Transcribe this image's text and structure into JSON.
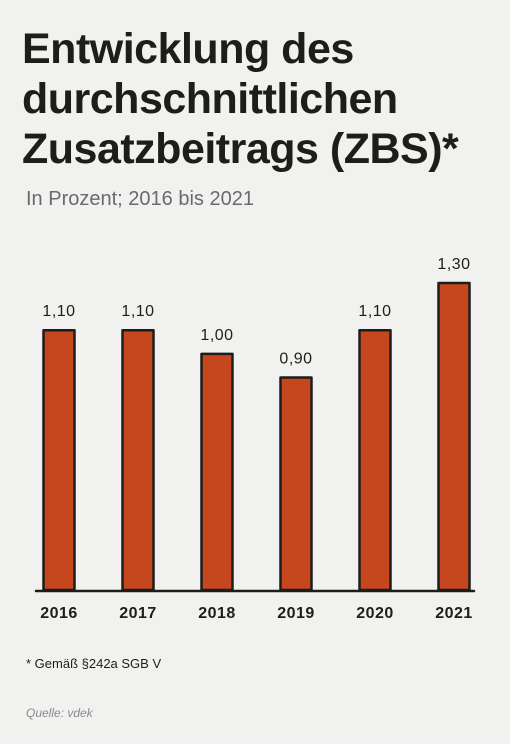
{
  "chart_data": {
    "type": "bar",
    "title": "Entwicklung des durchschnittlichen Zusatzbeitrags (ZBS)*",
    "subtitle": "In Prozent; 2016 bis 2021",
    "categories": [
      "2016",
      "2017",
      "2018",
      "2019",
      "2020",
      "2021"
    ],
    "values": [
      1.1,
      1.1,
      1.0,
      0.9,
      1.1,
      1.3
    ],
    "value_labels": [
      "1,10",
      "1,10",
      "1,00",
      "0,90",
      "1,10",
      "1,30"
    ],
    "ylim": [
      0,
      1.3
    ],
    "grid": false,
    "bar_color": "#c6471e",
    "outline_color": "#1d1d1b"
  },
  "footnote": "* Gemäß §242a SGB V",
  "source": "Quelle: vdek"
}
